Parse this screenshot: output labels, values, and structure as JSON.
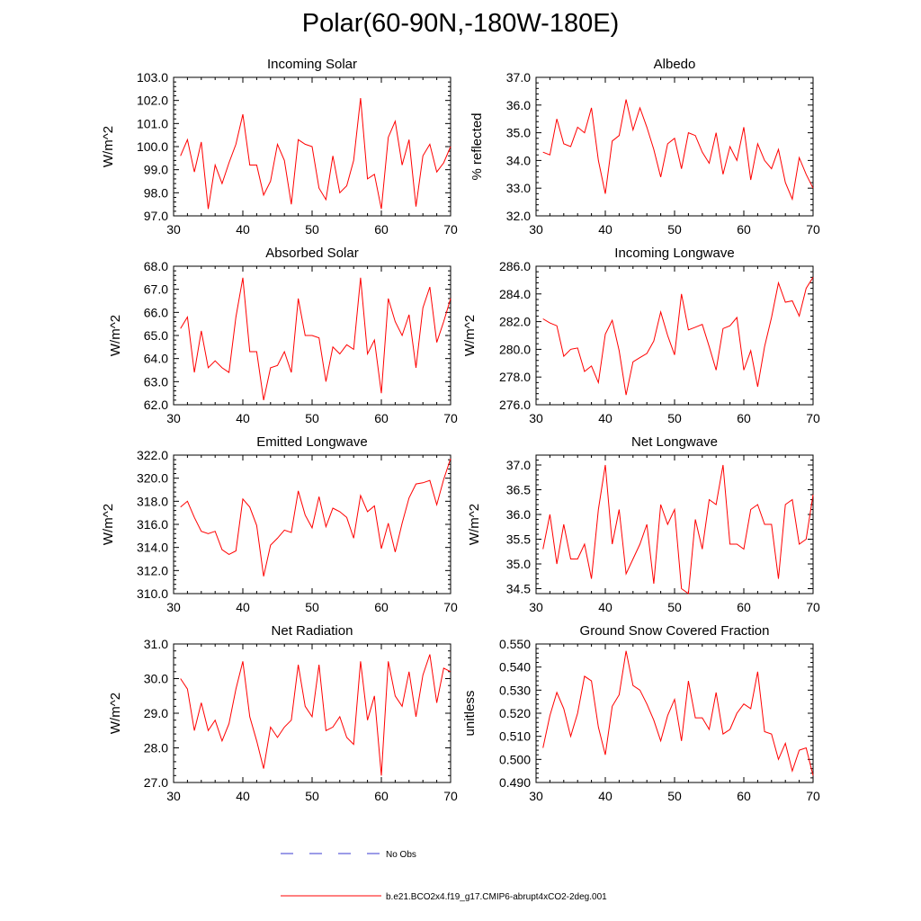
{
  "title": "Polar(60-90N,-180W-180E)",
  "colors": {
    "model": "#ff0000",
    "obs": "#3a3ad0",
    "axis": "#000000"
  },
  "legend": {
    "obs_label": "No Obs",
    "model_label": "b.e21.BCO2x4.f19_g17.CMIP6-abrupt4xCO2-2deg.001"
  },
  "chart_data": [
    {
      "type": "line",
      "title": "Incoming Solar",
      "ylabel": "W/m^2",
      "xlabel": "",
      "xlim": [
        30,
        70
      ],
      "ylim": [
        97.0,
        103.0
      ],
      "xticks": [
        30,
        40,
        50,
        60,
        70
      ],
      "yticks": [
        "97.0",
        "98.0",
        "99.0",
        "100.0",
        "101.0",
        "102.0",
        "103.0"
      ],
      "x": [
        31,
        32,
        33,
        34,
        35,
        36,
        37,
        38,
        39,
        40,
        41,
        42,
        43,
        44,
        45,
        46,
        47,
        48,
        49,
        50,
        51,
        52,
        53,
        54,
        55,
        56,
        57,
        58,
        59,
        60,
        61,
        62,
        63,
        64,
        65,
        66,
        67,
        68,
        69,
        70
      ],
      "values": [
        99.6,
        100.3,
        98.9,
        100.2,
        97.3,
        99.2,
        98.4,
        99.3,
        100.1,
        101.4,
        99.2,
        99.2,
        97.9,
        98.5,
        100.1,
        99.4,
        97.5,
        100.3,
        100.1,
        100.0,
        98.2,
        97.7,
        99.6,
        98.0,
        98.3,
        99.4,
        102.1,
        98.6,
        98.8,
        97.3,
        100.4,
        101.1,
        99.2,
        100.3,
        97.4,
        99.6,
        100.1,
        98.9,
        99.3,
        100.0
      ]
    },
    {
      "type": "line",
      "title": "Albedo",
      "ylabel": "% reflected",
      "xlabel": "",
      "xlim": [
        30,
        70
      ],
      "ylim": [
        32.0,
        37.0
      ],
      "xticks": [
        30,
        40,
        50,
        60,
        70
      ],
      "yticks": [
        "32.0",
        "33.0",
        "34.0",
        "35.0",
        "36.0",
        "37.0"
      ],
      "x": [
        31,
        32,
        33,
        34,
        35,
        36,
        37,
        38,
        39,
        40,
        41,
        42,
        43,
        44,
        45,
        46,
        47,
        48,
        49,
        50,
        51,
        52,
        53,
        54,
        55,
        56,
        57,
        58,
        59,
        60,
        61,
        62,
        63,
        64,
        65,
        66,
        67,
        68,
        69,
        70
      ],
      "values": [
        34.3,
        34.2,
        35.5,
        34.6,
        34.5,
        35.2,
        35.0,
        35.9,
        34.0,
        32.8,
        34.7,
        34.9,
        36.2,
        35.1,
        35.9,
        35.2,
        34.4,
        33.4,
        34.6,
        34.8,
        33.7,
        35.0,
        34.9,
        34.3,
        33.9,
        35.0,
        33.5,
        34.5,
        34.0,
        35.2,
        33.3,
        34.6,
        34.0,
        33.7,
        34.4,
        33.2,
        32.6,
        34.1,
        33.5,
        33.0
      ]
    },
    {
      "type": "line",
      "title": "Absorbed Solar",
      "ylabel": "W/m^2",
      "xlabel": "",
      "xlim": [
        30,
        70
      ],
      "ylim": [
        62.0,
        68.0
      ],
      "xticks": [
        30,
        40,
        50,
        60,
        70
      ],
      "yticks": [
        "62.0",
        "63.0",
        "64.0",
        "65.0",
        "66.0",
        "67.0",
        "68.0"
      ],
      "x": [
        31,
        32,
        33,
        34,
        35,
        36,
        37,
        38,
        39,
        40,
        41,
        42,
        43,
        44,
        45,
        46,
        47,
        48,
        49,
        50,
        51,
        52,
        53,
        54,
        55,
        56,
        57,
        58,
        59,
        60,
        61,
        62,
        63,
        64,
        65,
        66,
        67,
        68,
        69,
        70
      ],
      "values": [
        65.3,
        65.8,
        63.4,
        65.2,
        63.6,
        63.9,
        63.6,
        63.4,
        65.8,
        67.5,
        64.3,
        64.3,
        62.2,
        63.6,
        63.7,
        64.3,
        63.4,
        66.6,
        65.0,
        65.0,
        64.9,
        63.0,
        64.5,
        64.2,
        64.6,
        64.4,
        67.5,
        64.2,
        64.8,
        62.5,
        66.6,
        65.6,
        65.0,
        65.9,
        63.6,
        66.2,
        67.1,
        64.7,
        65.6,
        66.6
      ]
    },
    {
      "type": "line",
      "title": "Incoming Longwave",
      "ylabel": "W/m^2",
      "xlabel": "",
      "xlim": [
        30,
        70
      ],
      "ylim": [
        276.0,
        286.0
      ],
      "xticks": [
        30,
        40,
        50,
        60,
        70
      ],
      "yticks": [
        "276.0",
        "278.0",
        "280.0",
        "282.0",
        "284.0",
        "286.0"
      ],
      "x": [
        31,
        32,
        33,
        34,
        35,
        36,
        37,
        38,
        39,
        40,
        41,
        42,
        43,
        44,
        45,
        46,
        47,
        48,
        49,
        50,
        51,
        52,
        53,
        54,
        55,
        56,
        57,
        58,
        59,
        60,
        61,
        62,
        63,
        64,
        65,
        66,
        67,
        68,
        69,
        70
      ],
      "values": [
        282.2,
        281.9,
        281.7,
        279.5,
        280.0,
        280.1,
        278.4,
        278.8,
        277.6,
        281.1,
        282.1,
        279.9,
        276.7,
        279.1,
        279.4,
        279.7,
        280.6,
        282.7,
        281.0,
        279.6,
        284.0,
        281.4,
        281.6,
        281.8,
        280.2,
        278.5,
        281.5,
        281.7,
        282.3,
        278.5,
        279.9,
        277.3,
        280.2,
        282.3,
        284.8,
        283.4,
        283.5,
        282.4,
        284.4,
        285.2
      ]
    },
    {
      "type": "line",
      "title": "Emitted Longwave",
      "ylabel": "W/m^2",
      "xlabel": "",
      "xlim": [
        30,
        70
      ],
      "ylim": [
        310.0,
        322.0
      ],
      "xticks": [
        30,
        40,
        50,
        60,
        70
      ],
      "yticks": [
        "310.0",
        "312.0",
        "314.0",
        "316.0",
        "318.0",
        "320.0",
        "322.0"
      ],
      "x": [
        31,
        32,
        33,
        34,
        35,
        36,
        37,
        38,
        39,
        40,
        41,
        42,
        43,
        44,
        45,
        46,
        47,
        48,
        49,
        50,
        51,
        52,
        53,
        54,
        55,
        56,
        57,
        58,
        59,
        60,
        61,
        62,
        63,
        64,
        65,
        66,
        67,
        68,
        69,
        70
      ],
      "values": [
        317.5,
        318.0,
        316.6,
        315.4,
        315.2,
        315.4,
        313.8,
        313.4,
        313.7,
        318.2,
        317.5,
        315.9,
        311.5,
        314.2,
        314.8,
        315.5,
        315.3,
        318.9,
        316.8,
        315.7,
        318.4,
        315.8,
        317.4,
        317.1,
        316.6,
        314.8,
        318.5,
        317.1,
        317.6,
        313.9,
        316.1,
        313.6,
        316.1,
        318.3,
        319.5,
        319.6,
        319.8,
        317.7,
        319.9,
        321.7
      ]
    },
    {
      "type": "line",
      "title": "Net Longwave",
      "ylabel": "W/m^2",
      "xlabel": "",
      "xlim": [
        30,
        70
      ],
      "ylim": [
        34.4,
        37.2
      ],
      "xticks": [
        30,
        40,
        50,
        60,
        70
      ],
      "yticks": [
        "34.5",
        "35.0",
        "35.5",
        "36.0",
        "36.5",
        "37.0"
      ],
      "x": [
        31,
        32,
        33,
        34,
        35,
        36,
        37,
        38,
        39,
        40,
        41,
        42,
        43,
        44,
        45,
        46,
        47,
        48,
        49,
        50,
        51,
        52,
        53,
        54,
        55,
        56,
        57,
        58,
        59,
        60,
        61,
        62,
        63,
        64,
        65,
        66,
        67,
        68,
        69,
        70
      ],
      "values": [
        35.3,
        36.0,
        35.0,
        35.8,
        35.1,
        35.1,
        35.4,
        34.7,
        36.1,
        37.0,
        35.4,
        36.1,
        34.8,
        35.1,
        35.4,
        35.8,
        34.6,
        36.2,
        35.8,
        36.1,
        34.5,
        34.4,
        35.9,
        35.3,
        36.3,
        36.2,
        37.0,
        35.4,
        35.4,
        35.3,
        36.1,
        36.2,
        35.8,
        35.8,
        34.7,
        36.2,
        36.3,
        35.4,
        35.5,
        36.4
      ]
    },
    {
      "type": "line",
      "title": "Net Radiation",
      "ylabel": "W/m^2",
      "xlabel": "",
      "xlim": [
        30,
        70
      ],
      "ylim": [
        27.0,
        31.0
      ],
      "xticks": [
        30,
        40,
        50,
        60,
        70
      ],
      "yticks": [
        "27.0",
        "28.0",
        "29.0",
        "30.0",
        "31.0"
      ],
      "x": [
        31,
        32,
        33,
        34,
        35,
        36,
        37,
        38,
        39,
        40,
        41,
        42,
        43,
        44,
        45,
        46,
        47,
        48,
        49,
        50,
        51,
        52,
        53,
        54,
        55,
        56,
        57,
        58,
        59,
        60,
        61,
        62,
        63,
        64,
        65,
        66,
        67,
        68,
        69,
        70
      ],
      "values": [
        30.0,
        29.7,
        28.5,
        29.3,
        28.5,
        28.8,
        28.2,
        28.7,
        29.7,
        30.5,
        28.9,
        28.2,
        27.4,
        28.6,
        28.3,
        28.6,
        28.8,
        30.4,
        29.2,
        28.9,
        30.4,
        28.5,
        28.6,
        28.9,
        28.3,
        28.1,
        30.5,
        28.8,
        29.5,
        27.2,
        30.5,
        29.5,
        29.2,
        30.2,
        28.9,
        30.1,
        30.7,
        29.3,
        30.3,
        30.2
      ]
    },
    {
      "type": "line",
      "title": "Ground Snow Covered Fraction",
      "ylabel": "unitless",
      "xlabel": "",
      "xlim": [
        30,
        70
      ],
      "ylim": [
        0.49,
        0.55
      ],
      "xticks": [
        30,
        40,
        50,
        60,
        70
      ],
      "yticks": [
        "0.490",
        "0.500",
        "0.510",
        "0.520",
        "0.530",
        "0.540",
        "0.550"
      ],
      "x": [
        31,
        32,
        33,
        34,
        35,
        36,
        37,
        38,
        39,
        40,
        41,
        42,
        43,
        44,
        45,
        46,
        47,
        48,
        49,
        50,
        51,
        52,
        53,
        54,
        55,
        56,
        57,
        58,
        59,
        60,
        61,
        62,
        63,
        64,
        65,
        66,
        67,
        68,
        69,
        70
      ],
      "values": [
        0.505,
        0.519,
        0.529,
        0.522,
        0.51,
        0.52,
        0.536,
        0.534,
        0.514,
        0.502,
        0.523,
        0.528,
        0.547,
        0.532,
        0.53,
        0.524,
        0.517,
        0.508,
        0.519,
        0.526,
        0.508,
        0.534,
        0.518,
        0.518,
        0.513,
        0.529,
        0.511,
        0.513,
        0.52,
        0.524,
        0.522,
        0.538,
        0.512,
        0.511,
        0.5,
        0.507,
        0.495,
        0.504,
        0.505,
        0.493
      ]
    }
  ]
}
